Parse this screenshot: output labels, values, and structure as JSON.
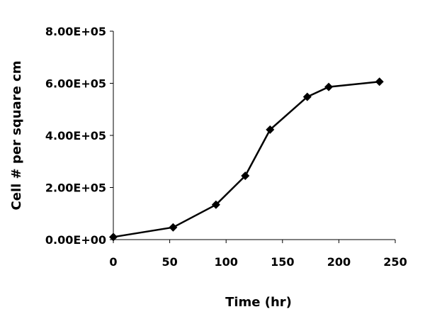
{
  "chart_data": {
    "type": "line",
    "title": "",
    "xlabel": "Time (hr)",
    "ylabel": "Cell # per square cm",
    "xlim": [
      0,
      250
    ],
    "ylim": [
      0,
      800000
    ],
    "x_ticks": [
      0,
      50,
      100,
      150,
      200,
      250
    ],
    "x_tick_labels": [
      "0",
      "50",
      "100",
      "150",
      "200",
      "250"
    ],
    "y_ticks": [
      0,
      200000,
      400000,
      600000,
      800000
    ],
    "y_tick_labels": [
      "0.00E+00",
      "2.00E+05",
      "4.00E+05",
      "6.00E+05",
      "8.00E+05"
    ],
    "grid": false,
    "legend": "none",
    "marker": "diamond",
    "series": [
      {
        "color": "#000000",
        "x": [
          0,
          53,
          91,
          117,
          139,
          172,
          191,
          236
        ],
        "y": [
          10000,
          47000,
          134000,
          245000,
          422000,
          548000,
          586000,
          606000
        ]
      }
    ]
  }
}
